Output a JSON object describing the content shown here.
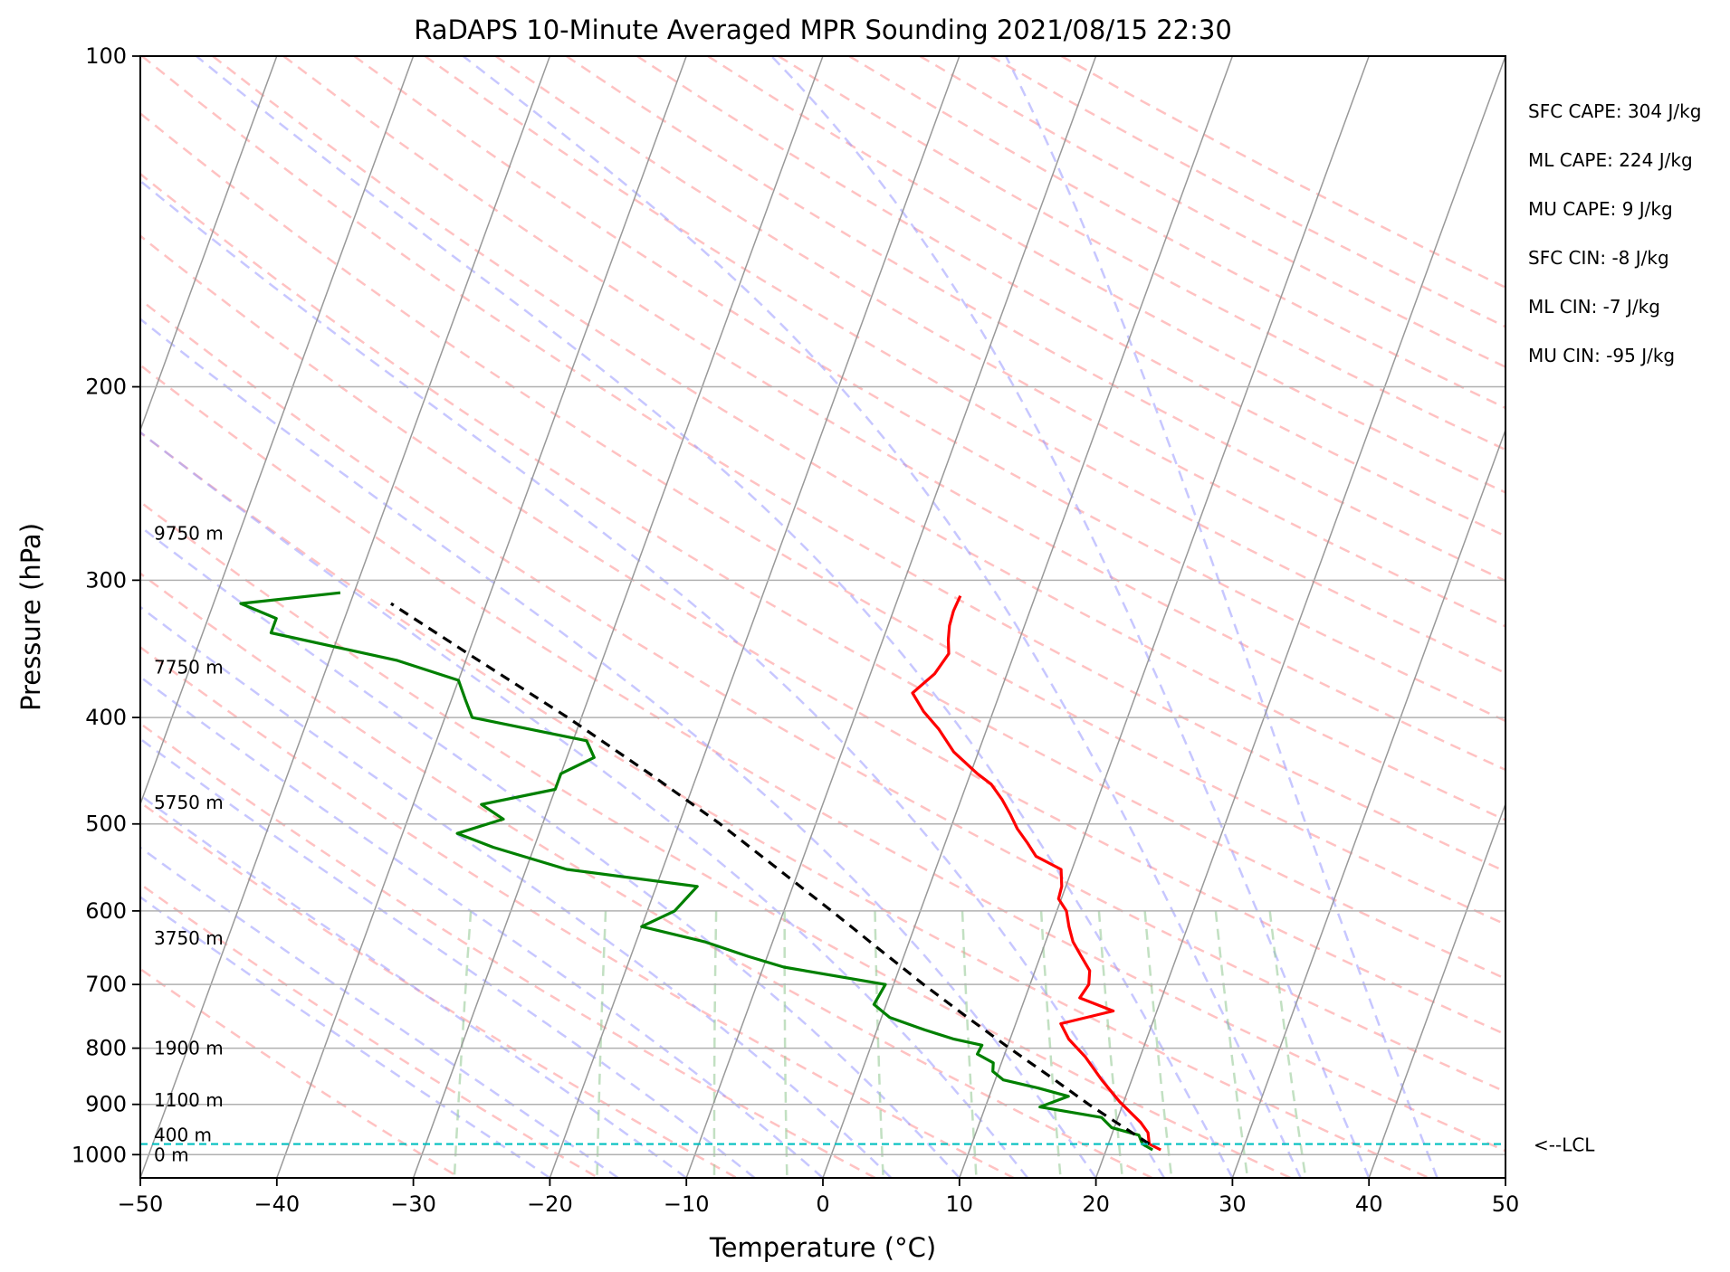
{
  "chart_data": {
    "type": "line",
    "title": "RaDAPS 10-Minute Averaged MPR Sounding 2021/08/15 22:30",
    "xlabel": "Temperature (°C)",
    "ylabel": "Pressure (hPa)",
    "xlim": [
      -50,
      50
    ],
    "ylim": [
      1050,
      100
    ],
    "y_scale": "log",
    "skew_t": true,
    "xticks": [
      -50,
      -40,
      -30,
      -20,
      -10,
      0,
      10,
      20,
      30,
      40,
      50
    ],
    "xtick_labels": [
      "−50",
      "−40",
      "−30",
      "−20",
      "−10",
      "0",
      "10",
      "20",
      "30",
      "40",
      "50"
    ],
    "yticks": [
      100,
      200,
      300,
      400,
      500,
      600,
      700,
      800,
      900,
      1000
    ],
    "ytick_labels": [
      "100",
      "200",
      "300",
      "400",
      "500",
      "600",
      "700",
      "800",
      "900",
      "1000"
    ],
    "grid": true,
    "colors": {
      "temperature": "#ff0000",
      "dewpoint": "#008000",
      "parcel": "#000000",
      "lcl": "#00bfbf",
      "dry_adiabat": "#ff9999",
      "moist_adiabat": "#9999ff",
      "mixing_ratio": "#99cc99",
      "isotherm": "#999999"
    },
    "series": [
      {
        "key": "temperature",
        "p": [
          990,
          978,
          955,
          935,
          895,
          855,
          815,
          785,
          760,
          740,
          720,
          700,
          680,
          660,
          640,
          620,
          600,
          585,
          570,
          550,
          535,
          520,
          505,
          490,
          475,
          460,
          450,
          430,
          410,
          395,
          380,
          365,
          350,
          340,
          330,
          320,
          310
        ],
        "t": [
          24,
          23,
          22.6,
          21.8,
          19.7,
          17.8,
          16.0,
          14.3,
          13.3,
          16.8,
          14.0,
          14.3,
          14.0,
          13.0,
          12.0,
          11.3,
          10.7,
          9.8,
          9.7,
          9.2,
          7.0,
          6.0,
          4.9,
          4.0,
          3.0,
          1.8,
          0.5,
          -1.8,
          -3.5,
          -5.1,
          -6.4,
          -5.3,
          -4.8,
          -5.2,
          -5.5,
          -5.6,
          -5.5
        ]
      },
      {
        "key": "dewpoint",
        "p": [
          990,
          978,
          960,
          945,
          925,
          905,
          885,
          870,
          855,
          840,
          825,
          810,
          795,
          785,
          770,
          750,
          730,
          700,
          675,
          660,
          640,
          620,
          600,
          570,
          550,
          525,
          510,
          495,
          480,
          465,
          450,
          435,
          420,
          400,
          385,
          370,
          355,
          335,
          325,
          315,
          308
        ],
        "td": [
          23.4,
          22.5,
          22.0,
          19.8,
          18.8,
          14.0,
          15.8,
          13.4,
          10.6,
          9.6,
          9.4,
          8.0,
          8.1,
          5.9,
          3.5,
          0.6,
          -0.9,
          -0.6,
          -8.5,
          -11.4,
          -15.0,
          -20.0,
          -18.0,
          -17.0,
          -27.0,
          -33.0,
          -36.0,
          -33.0,
          -35.0,
          -30.0,
          -30.0,
          -28.0,
          -29.0,
          -38.0,
          -39.0,
          -40.0,
          -45.0,
          -55.0,
          -55.0,
          -58.0,
          -51.0
        ]
      },
      {
        "key": "parcel",
        "p": [
          978,
          900,
          850,
          800,
          750,
          700,
          650,
          600,
          550,
          500,
          450,
          400,
          350,
          315
        ],
        "t": [
          23.0,
          17.5,
          14.0,
          10.2,
          6.3,
          2.2,
          -2.0,
          -6.5,
          -11.5,
          -17.0,
          -23.5,
          -31.0,
          -40.0,
          -47.0
        ]
      }
    ],
    "lcl_pressure": 978,
    "lcl_label": "<--LCL",
    "height_labels": [
      {
        "p": 1000,
        "text": "0 m"
      },
      {
        "p": 960,
        "text": "400 m"
      },
      {
        "p": 892,
        "text": "1100 m"
      },
      {
        "p": 800,
        "text": "1900 m"
      },
      {
        "p": 635,
        "text": "3750 m"
      },
      {
        "p": 478,
        "text": "5750 m"
      },
      {
        "p": 360,
        "text": "7750 m"
      },
      {
        "p": 272,
        "text": "9750 m"
      }
    ],
    "annotations": [
      "SFC CAPE: 304 J/kg",
      "ML CAPE: 224 J/kg",
      "MU CAPE: 9 J/kg",
      "SFC CIN: -8 J/kg",
      "ML CIN: -7 J/kg",
      "MU CIN: -95 J/kg"
    ]
  }
}
